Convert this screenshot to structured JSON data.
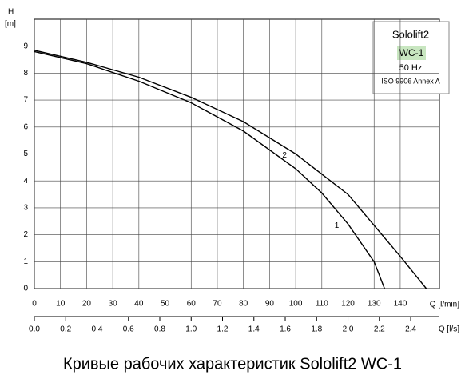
{
  "chart_data": {
    "type": "line",
    "title": "Кривые рабочих характеристик Sololift2 WC-1",
    "y_label_top": "H",
    "y_label_unit": "[m]",
    "x_label": "Q [l/min]",
    "x2_label": "Q [l/s]",
    "legend_box": [
      "Sololift2",
      "WC-1",
      "50 Hz",
      "ISO 9906 Annex A"
    ],
    "xlim": [
      0,
      155
    ],
    "xticks": [
      0,
      10,
      20,
      30,
      40,
      50,
      60,
      70,
      80,
      90,
      100,
      110,
      120,
      130,
      140
    ],
    "x2lim": [
      0,
      2.5833
    ],
    "x2ticks": [
      {
        "value": 0,
        "label": "0.0"
      },
      0.2,
      0.4,
      0.6,
      0.8,
      {
        "value": 1,
        "label": "1.0"
      },
      1.2,
      1.4,
      1.6,
      1.8,
      {
        "value": 2,
        "label": "2.0"
      },
      2.2,
      2.4
    ],
    "ylim": [
      0,
      10
    ],
    "yticks": [
      0,
      1,
      2,
      3,
      4,
      5,
      6,
      7,
      8,
      9
    ],
    "grid": true,
    "series": [
      {
        "name": "1",
        "color": "#000000",
        "x": [
          0,
          20,
          40,
          60,
          80,
          100,
          110,
          120,
          130,
          132,
          134
        ],
        "values": [
          8.8,
          8.35,
          7.7,
          6.9,
          5.85,
          4.45,
          3.55,
          2.4,
          1.0,
          0.5,
          0
        ]
      },
      {
        "name": "2",
        "color": "#000000",
        "x": [
          0,
          20,
          40,
          60,
          80,
          100,
          120,
          140,
          145,
          150
        ],
        "values": [
          8.85,
          8.4,
          7.85,
          7.1,
          6.2,
          5.0,
          3.5,
          1.2,
          0.6,
          0
        ]
      }
    ]
  }
}
